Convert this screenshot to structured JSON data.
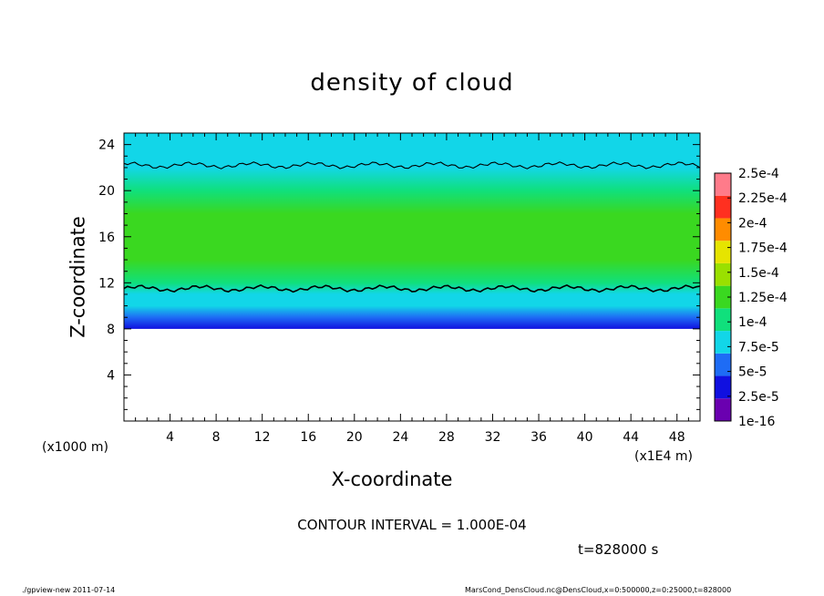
{
  "chart_data": {
    "type": "heatmap",
    "title": "density of cloud",
    "xlabel": "X-coordinate",
    "ylabel": "Z-coordinate",
    "x_unit_left": "(x1000 m)",
    "x_unit_right": "(x1E4 m)",
    "xlim": [
      0,
      50
    ],
    "ylim": [
      0,
      25
    ],
    "x_ticks": [
      4,
      8,
      12,
      16,
      20,
      24,
      28,
      32,
      36,
      40,
      44,
      48
    ],
    "x_tick_labels": [
      "4",
      "8",
      "12",
      "16",
      "20",
      "24",
      "28",
      "32",
      "36",
      "40",
      "44",
      "48"
    ],
    "y_ticks": [
      4,
      8,
      12,
      16,
      20,
      24
    ],
    "y_tick_labels": [
      "4",
      "8",
      "12",
      "16",
      "20",
      "24"
    ],
    "profile": [
      {
        "z": 8.0,
        "value": 2.5e-05
      },
      {
        "z": 9.0,
        "value": 5e-05
      },
      {
        "z": 10.0,
        "value": 7.5e-05
      },
      {
        "z": 11.0,
        "value": 9e-05
      },
      {
        "z": 12.0,
        "value": 0.000115
      },
      {
        "z": 14.0,
        "value": 0.00013
      },
      {
        "z": 16.0,
        "value": 0.000135
      },
      {
        "z": 18.0,
        "value": 0.000125
      },
      {
        "z": 20.0,
        "value": 0.00011
      },
      {
        "z": 22.0,
        "value": 9.5e-05
      },
      {
        "z": 23.0,
        "value": 8.5e-05
      },
      {
        "z": 25.0,
        "value": 8e-05
      }
    ],
    "contour_levels": [
      0.0001
    ],
    "contour_lines_z": [
      11.5,
      22.2
    ],
    "colorbar": {
      "levels": [
        1e-16,
        2.5e-05,
        5e-05,
        7.5e-05,
        0.0001,
        0.000125,
        0.00015,
        0.000175,
        0.0002,
        0.000225,
        0.00025
      ],
      "labels": [
        "1e-16",
        "2.5e-5",
        "5e-5",
        "7.5e-5",
        "1e-4",
        "1.25e-4",
        "1.5e-4",
        "1.75e-4",
        "2e-4",
        "2.25e-4",
        "2.5e-4"
      ],
      "colors": [
        "#6a00b0",
        "#1010e0",
        "#1e6cf5",
        "#12d6e8",
        "#10e07c",
        "#3ad820",
        "#9ae000",
        "#e6e400",
        "#ff8c00",
        "#ff3020",
        "#ff7b8a"
      ]
    }
  },
  "contour_interval": "CONTOUR INTERVAL = 1.000E-04",
  "time_label": "t=828000 s",
  "footer_left": "./gpview-new  2011-07-14",
  "footer_right": "MarsCond_DensCloud.nc@DensCloud,x=0:500000,z=0:25000,t=828000"
}
